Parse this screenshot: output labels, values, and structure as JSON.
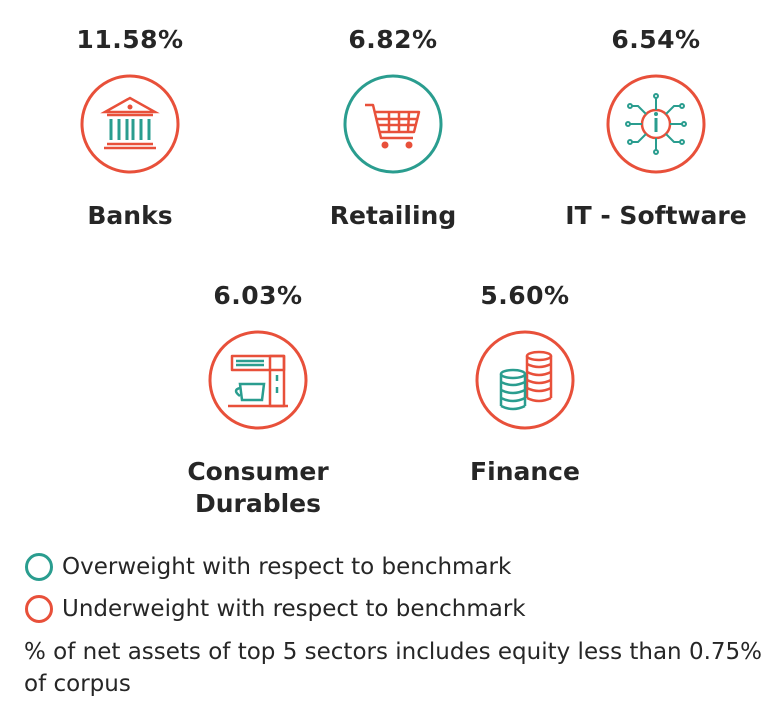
{
  "colors": {
    "overweight": "#2a9d8f",
    "underweight": "#e8503a",
    "text": "#262626"
  },
  "sectors": [
    {
      "name": "Banks",
      "percent": "11.58%",
      "icon": "bank-building-icon",
      "weight": "underweight"
    },
    {
      "name": "Retailing",
      "percent": "6.82%",
      "icon": "shopping-cart-icon",
      "weight": "overweight"
    },
    {
      "name": "IT - Software",
      "percent": "6.54%",
      "icon": "microchip-icon",
      "weight": "underweight"
    },
    {
      "name": "Consumer Durables",
      "percent": "6.03%",
      "icon": "coffee-machine-icon",
      "weight": "underweight"
    },
    {
      "name": "Finance",
      "percent": "5.60%",
      "icon": "coin-stack-icon",
      "weight": "underweight"
    }
  ],
  "legend": {
    "overweight_label": "Overweight with respect to benchmark",
    "underweight_label": "Underweight with respect to benchmark"
  },
  "note": "% of net assets of top 5 sectors includes equity less than 0.75% of corpus"
}
